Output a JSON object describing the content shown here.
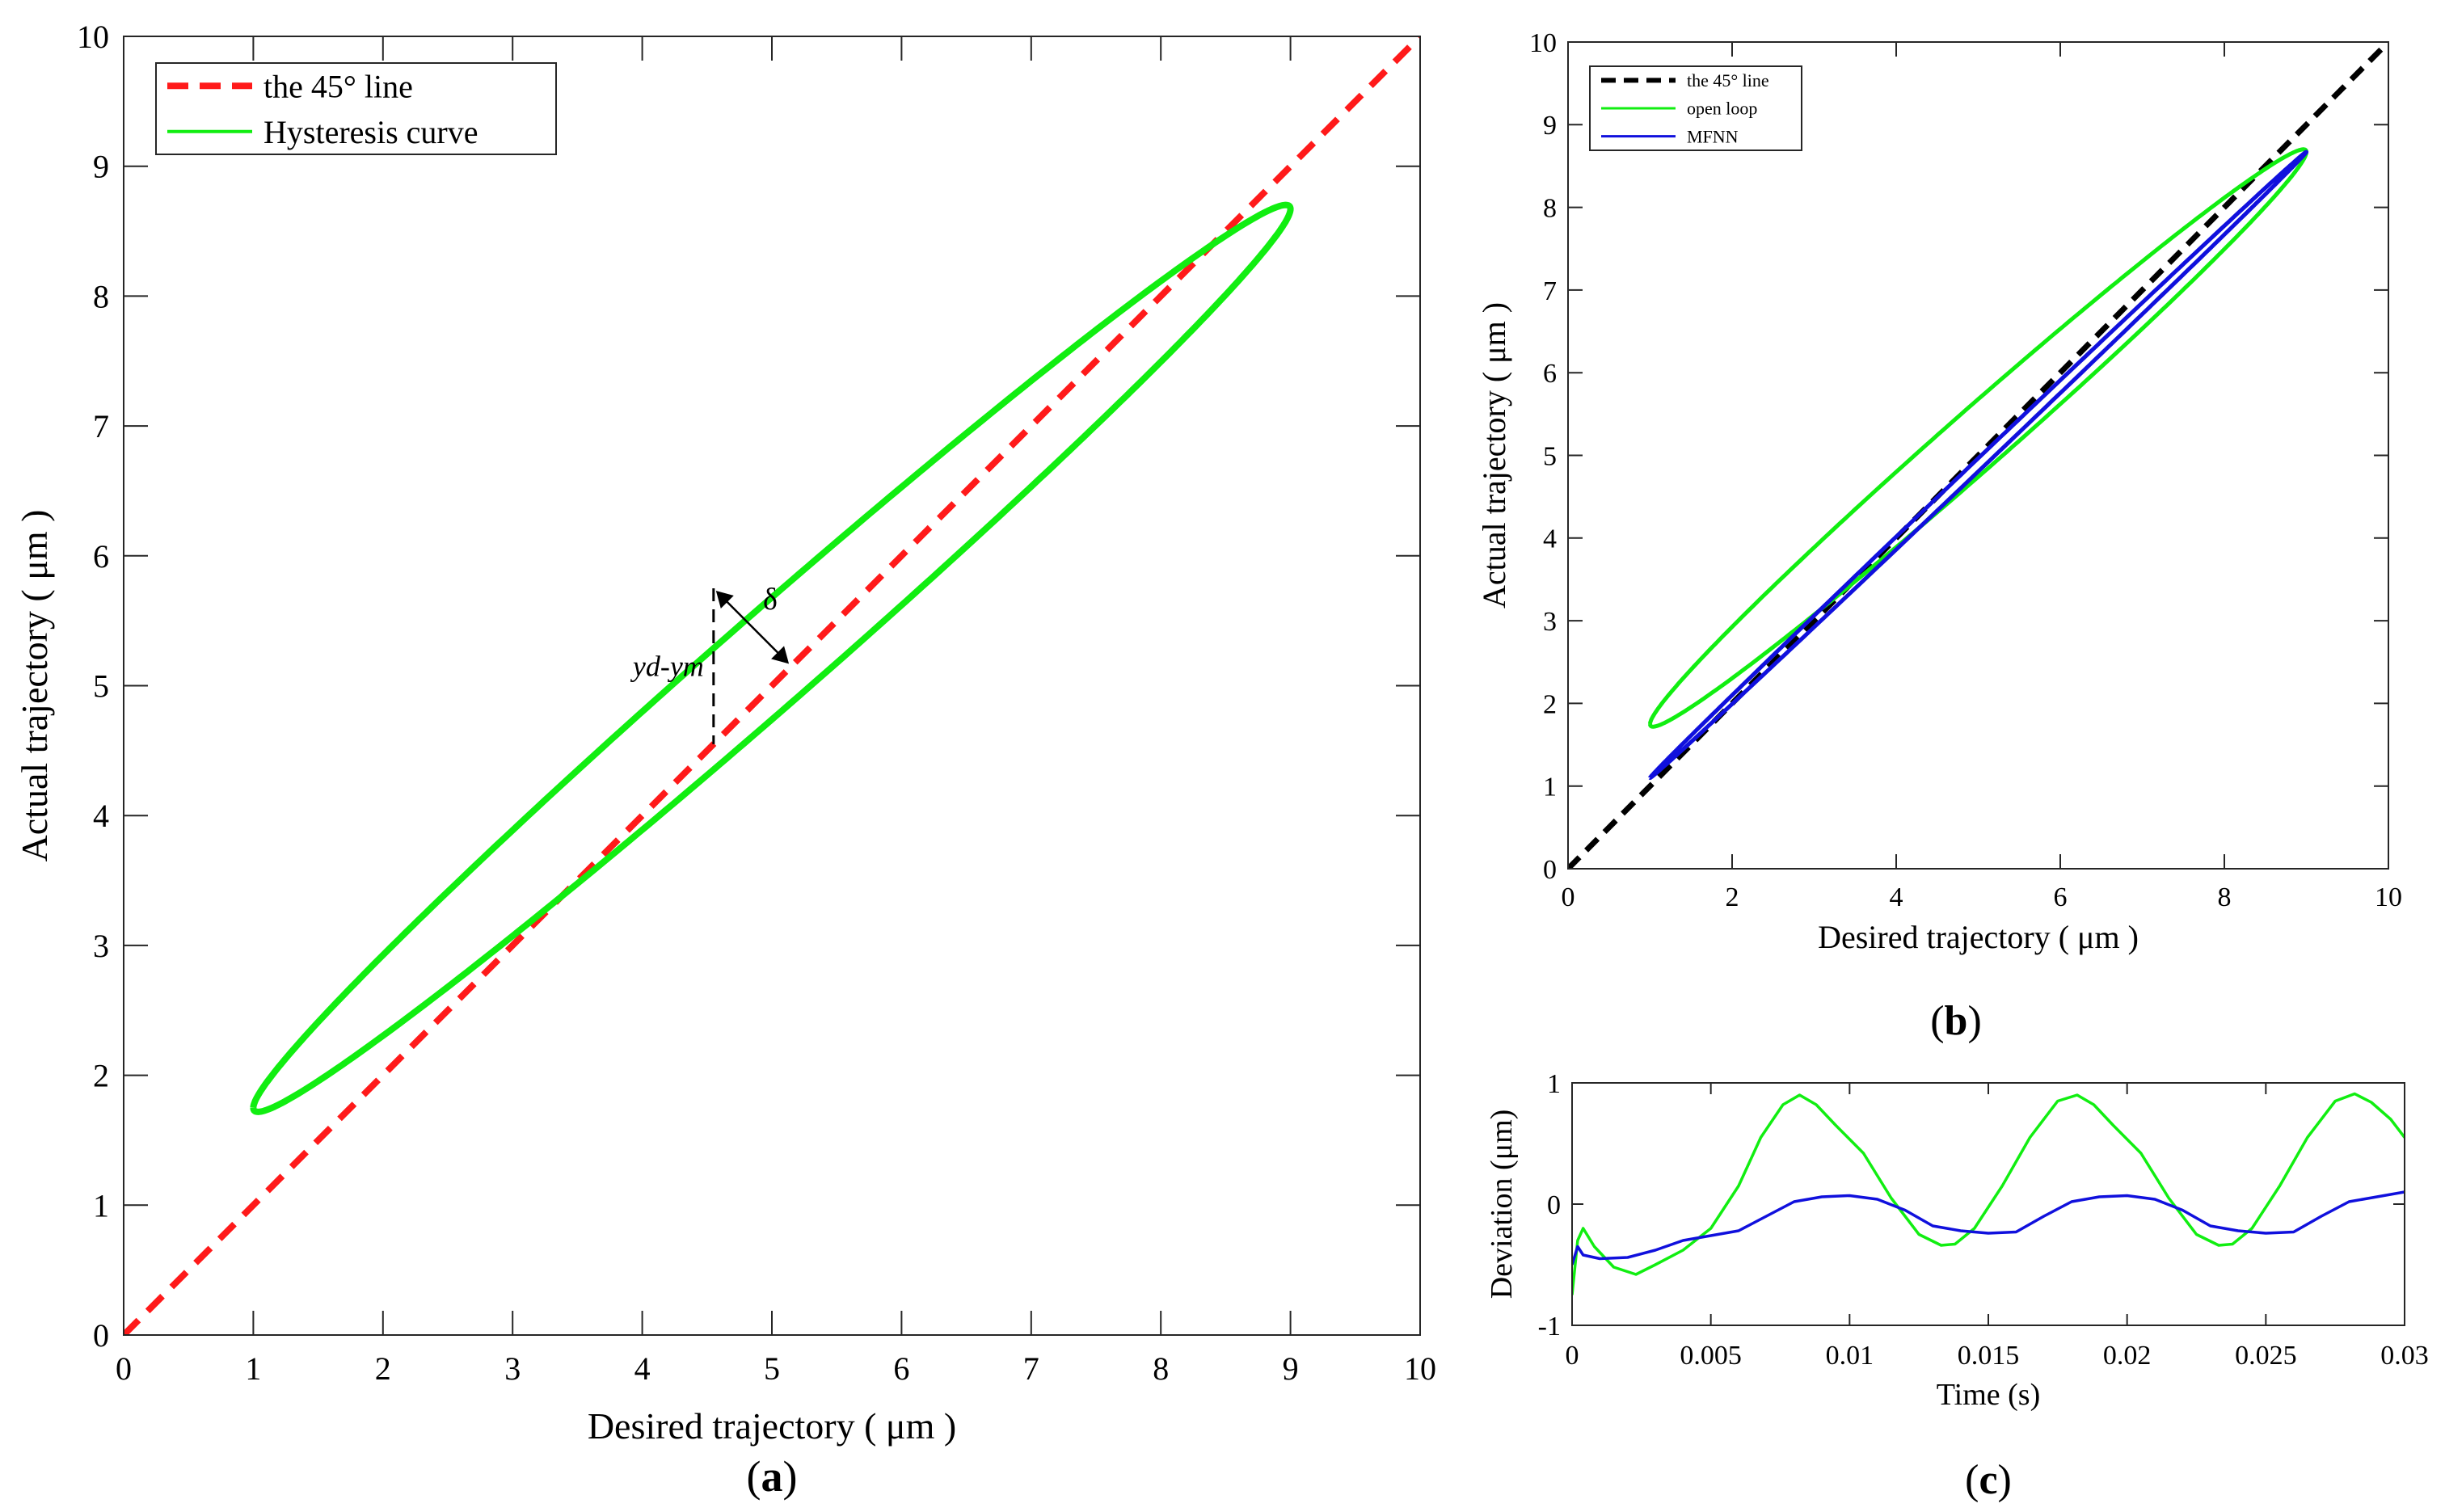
{
  "chart_data": [
    {
      "id": "a",
      "type": "line",
      "panel_label": "a",
      "xlabel": "Desired trajectory ( μm )",
      "ylabel": "Actual trajectory ( μm )",
      "xlim": [
        0,
        10
      ],
      "ylim": [
        0,
        10
      ],
      "xticks": [
        0,
        1,
        2,
        3,
        4,
        5,
        6,
        7,
        8,
        9,
        10
      ],
      "yticks": [
        0,
        1,
        2,
        3,
        4,
        5,
        6,
        7,
        8,
        9,
        10
      ],
      "grid": false,
      "legend_position": "top-left",
      "series": [
        {
          "name": "the 45° line",
          "color": "#ff1a1a",
          "style": "dashed",
          "x": [
            0,
            10
          ],
          "y": [
            0,
            10
          ]
        },
        {
          "name": "Hysteresis curve",
          "color": "#11ee11",
          "style": "solid",
          "kind": "loop",
          "x_range": [
            1.0,
            9.0
          ],
          "y_range": [
            1.75,
            8.67
          ],
          "loop_width": 0.47
        }
      ],
      "annotations": {
        "delta": "δ",
        "vertical": "yd-ym",
        "at_x": 4.55,
        "top_y": 5.75,
        "bottom_y": 4.55,
        "foot_x": 5.15,
        "foot_y": 5.15
      }
    },
    {
      "id": "b",
      "type": "line",
      "panel_label": "b",
      "xlabel": "Desired trajectory ( μm )",
      "ylabel": "Actual trajectory ( μm )",
      "xlim": [
        0,
        10
      ],
      "ylim": [
        0,
        10
      ],
      "xticks": [
        0,
        2,
        4,
        6,
        8,
        10
      ],
      "yticks": [
        0,
        1,
        2,
        3,
        4,
        5,
        6,
        7,
        8,
        9,
        10
      ],
      "grid": false,
      "legend_position": "top-left",
      "series": [
        {
          "name": "the 45° line",
          "color": "#000000",
          "style": "dashed",
          "x": [
            0,
            10
          ],
          "y": [
            0,
            10
          ]
        },
        {
          "name": "open loop",
          "color": "#11ee11",
          "style": "solid",
          "kind": "loop",
          "x_range": [
            1.0,
            9.0
          ],
          "y_range": [
            1.75,
            8.67
          ],
          "loop_width": 0.47
        },
        {
          "name": "MFNN",
          "color": "#1010dd",
          "style": "solid",
          "kind": "loop",
          "x_range": [
            1.0,
            9.0
          ],
          "y_range": [
            1.1,
            8.67
          ],
          "loop_width": 0.08
        }
      ]
    },
    {
      "id": "c",
      "type": "line",
      "panel_label": "c",
      "xlabel": "Time (s)",
      "ylabel": "Deviation (μm)",
      "xlim": [
        0,
        0.03
      ],
      "ylim": [
        -1,
        1
      ],
      "xticks": [
        0,
        0.005,
        0.01,
        0.015,
        0.02,
        0.025,
        0.03
      ],
      "xtick_labels": [
        "0",
        "0.005",
        "0.01",
        "0.015",
        "0.02",
        "0.025",
        "0.03"
      ],
      "yticks": [
        -1,
        0,
        1
      ],
      "grid": false,
      "series": [
        {
          "name": "open loop",
          "color": "#11ee11",
          "x": [
            0,
            0.0002,
            0.0004,
            0.0008,
            0.0015,
            0.0023,
            0.003,
            0.004,
            0.005,
            0.006,
            0.0068,
            0.0076,
            0.0082,
            0.0088,
            0.0095,
            0.0105,
            0.0115,
            0.0125,
            0.0133,
            0.0138,
            0.0145,
            0.0155,
            0.0165,
            0.0175,
            0.0182,
            0.0188,
            0.0195,
            0.0205,
            0.0215,
            0.0225,
            0.0233,
            0.0238,
            0.0245,
            0.0255,
            0.0265,
            0.0275,
            0.0282,
            0.0288,
            0.0295,
            0.03
          ],
          "y": [
            -0.75,
            -0.3,
            -0.2,
            -0.35,
            -0.52,
            -0.58,
            -0.5,
            -0.38,
            -0.2,
            0.15,
            0.55,
            0.82,
            0.9,
            0.82,
            0.65,
            0.42,
            0.05,
            -0.25,
            -0.34,
            -0.33,
            -0.2,
            0.15,
            0.55,
            0.85,
            0.9,
            0.82,
            0.65,
            0.42,
            0.05,
            -0.25,
            -0.34,
            -0.33,
            -0.2,
            0.15,
            0.55,
            0.85,
            0.91,
            0.84,
            0.7,
            0.55
          ]
        },
        {
          "name": "MFNN",
          "color": "#1010dd",
          "x": [
            0,
            0.0002,
            0.0004,
            0.001,
            0.002,
            0.003,
            0.004,
            0.005,
            0.006,
            0.007,
            0.008,
            0.009,
            0.01,
            0.011,
            0.012,
            0.013,
            0.014,
            0.015,
            0.016,
            0.017,
            0.018,
            0.019,
            0.02,
            0.021,
            0.022,
            0.023,
            0.024,
            0.025,
            0.026,
            0.027,
            0.028,
            0.029,
            0.03
          ],
          "y": [
            -0.5,
            -0.35,
            -0.42,
            -0.45,
            -0.44,
            -0.38,
            -0.3,
            -0.26,
            -0.22,
            -0.1,
            0.02,
            0.06,
            0.07,
            0.04,
            -0.05,
            -0.18,
            -0.22,
            -0.24,
            -0.23,
            -0.1,
            0.02,
            0.06,
            0.07,
            0.04,
            -0.05,
            -0.18,
            -0.22,
            -0.24,
            -0.23,
            -0.1,
            0.02,
            0.06,
            0.1
          ]
        }
      ]
    }
  ]
}
